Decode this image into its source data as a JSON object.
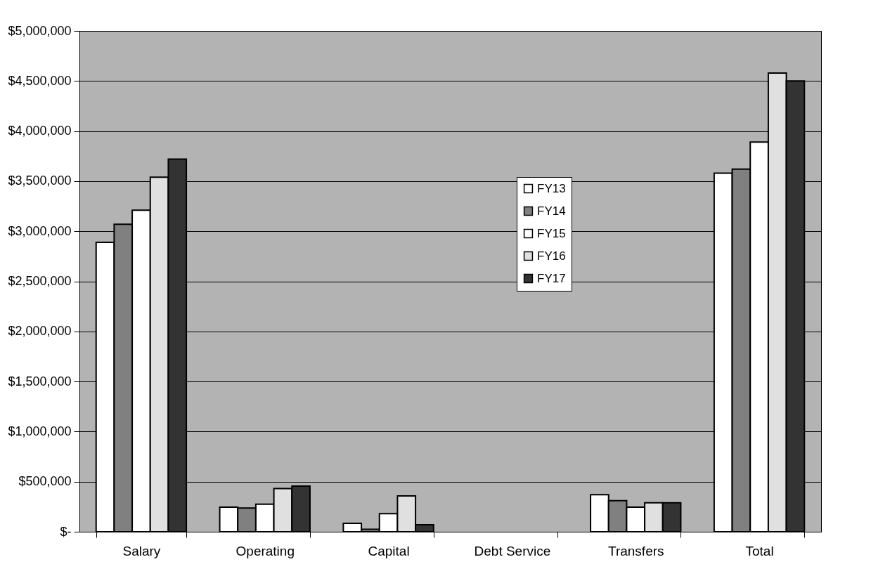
{
  "chart_data": {
    "type": "bar",
    "categories": [
      "Salary",
      "Operating",
      "Capital",
      "Debt Service",
      "Transfers",
      "Total"
    ],
    "series": [
      {
        "name": "FY13",
        "color": "#ffffff",
        "values": [
          2890000,
          245000,
          85000,
          null,
          370000,
          3580000
        ]
      },
      {
        "name": "FY14",
        "color": "#808080",
        "values": [
          3070000,
          237000,
          25000,
          null,
          310000,
          3620000
        ]
      },
      {
        "name": "FY15",
        "color": "#ffffff",
        "values": [
          3210000,
          275000,
          180000,
          null,
          245000,
          3890000
        ]
      },
      {
        "name": "FY16",
        "color": "#e0e0e0",
        "values": [
          3540000,
          432000,
          357000,
          null,
          290000,
          4580000
        ]
      },
      {
        "name": "FY17",
        "color": "#333333",
        "values": [
          3720000,
          455000,
          70000,
          null,
          290000,
          4500000
        ]
      }
    ],
    "ylim": [
      0,
      5000000
    ],
    "yticks": [
      {
        "value": 0,
        "label": "$-"
      },
      {
        "value": 500000,
        "label": "$500,000"
      },
      {
        "value": 1000000,
        "label": "$1,000,000"
      },
      {
        "value": 1500000,
        "label": "$1,500,000"
      },
      {
        "value": 2000000,
        "label": "$2,000,000"
      },
      {
        "value": 2500000,
        "label": "$2,500,000"
      },
      {
        "value": 3000000,
        "label": "$3,000,000"
      },
      {
        "value": 3500000,
        "label": "$3,500,000"
      },
      {
        "value": 4000000,
        "label": "$4,000,000"
      },
      {
        "value": 4500000,
        "label": "$4,500,000"
      },
      {
        "value": 5000000,
        "label": "$5,000,000"
      }
    ],
    "grid": "y",
    "legend": "center"
  }
}
